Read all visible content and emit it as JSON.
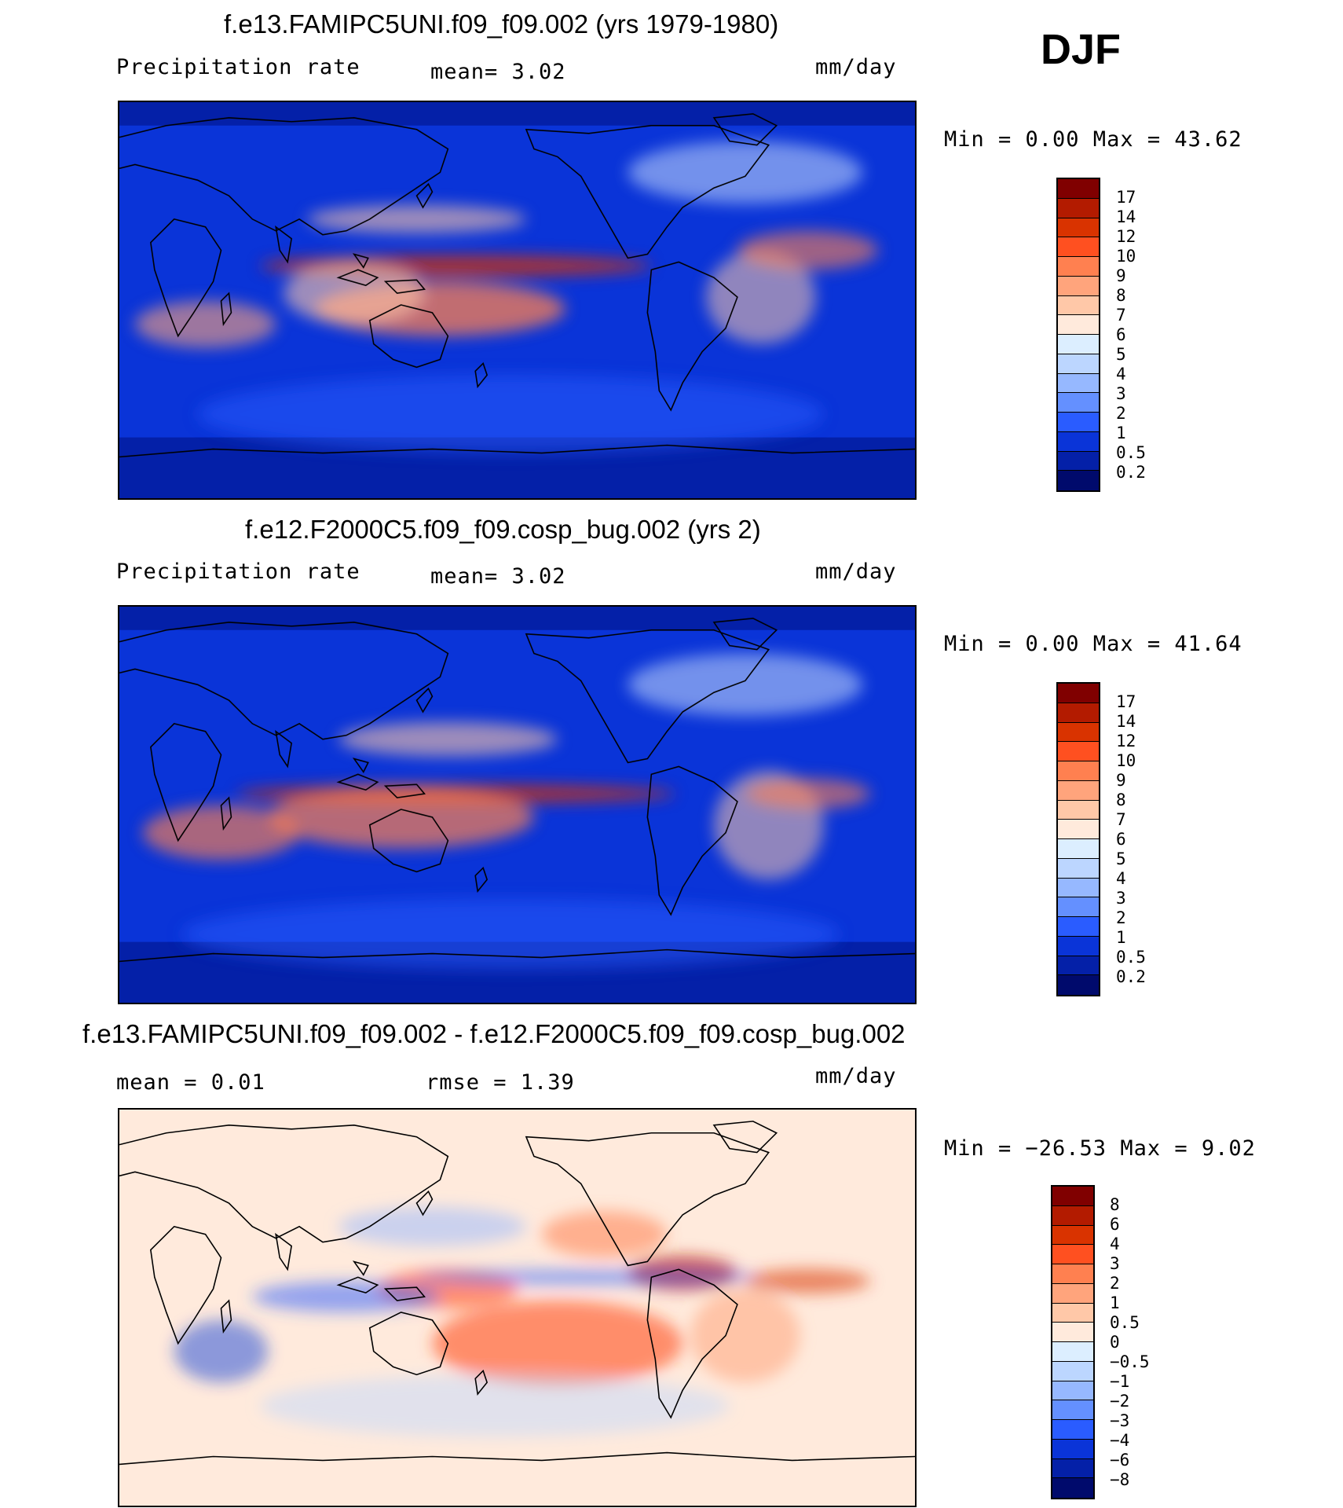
{
  "season": "DJF",
  "chart_data": [
    {
      "type": "heatmap",
      "title": "f.e13.FAMIPC5UNI.f09_f09.002 (yrs 1979-1980)",
      "left_label": "Precipitation  rate",
      "center_label": "mean=    3.02",
      "units": "mm/day",
      "minmax_text": "Min  =     0.00  Max  =    43.62",
      "min": 0.0,
      "max": 43.62,
      "mean": 3.02,
      "colorbar_levels": [
        "17",
        "14",
        "12",
        "10",
        "9",
        "8",
        "7",
        "6",
        "5",
        "4",
        "3",
        "2",
        "1",
        "0.5",
        "0.2"
      ],
      "colorbar_colors": [
        "#800000",
        "#b31b00",
        "#d93300",
        "#ff5020",
        "#ff8050",
        "#ffa47c",
        "#ffc8a8",
        "#ffeadc",
        "#dceeff",
        "#bcd6ff",
        "#96b8ff",
        "#6490ff",
        "#2a5cff",
        "#0a34d8",
        "#0420a8",
        "#000a6c"
      ]
    },
    {
      "type": "heatmap",
      "title": "f.e12.F2000C5.f09_f09.cosp_bug.002 (yrs 2)",
      "left_label": "Precipitation  rate",
      "center_label": "mean=    3.02",
      "units": "mm/day",
      "minmax_text": "Min  =     0.00  Max  =    41.64",
      "min": 0.0,
      "max": 41.64,
      "mean": 3.02,
      "colorbar_levels": [
        "17",
        "14",
        "12",
        "10",
        "9",
        "8",
        "7",
        "6",
        "5",
        "4",
        "3",
        "2",
        "1",
        "0.5",
        "0.2"
      ],
      "colorbar_colors": [
        "#800000",
        "#b31b00",
        "#d93300",
        "#ff5020",
        "#ff8050",
        "#ffa47c",
        "#ffc8a8",
        "#ffeadc",
        "#dceeff",
        "#bcd6ff",
        "#96b8ff",
        "#6490ff",
        "#2a5cff",
        "#0a34d8",
        "#0420a8",
        "#000a6c"
      ]
    },
    {
      "type": "heatmap",
      "title": "f.e13.FAMIPC5UNI.f09_f09.002 - f.e12.F2000C5.f09_f09.cosp_bug.002",
      "left_label": "mean  =     0.01",
      "center_label": "rmse  =     1.39",
      "units": "mm/day",
      "minmax_text": "Min  = −26.53  Max  =     9.02",
      "min": -26.53,
      "max": 9.02,
      "mean": 0.01,
      "rmse": 1.39,
      "colorbar_levels": [
        "8",
        "6",
        "4",
        "3",
        "2",
        "1",
        "0.5",
        "0",
        "−0.5",
        "−1",
        "−2",
        "−3",
        "−4",
        "−6",
        "−8"
      ],
      "colorbar_colors": [
        "#800000",
        "#b31b00",
        "#d93300",
        "#ff5020",
        "#ff8050",
        "#ffa47c",
        "#ffc8a8",
        "#ffeadc",
        "#dceeff",
        "#bcd6ff",
        "#96b8ff",
        "#6490ff",
        "#2a5cff",
        "#0a34d8",
        "#0420a8",
        "#000a6c"
      ]
    }
  ]
}
